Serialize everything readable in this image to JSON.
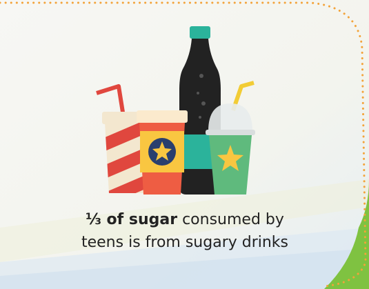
{
  "caption": {
    "highlight": "⅓ of sugar",
    "line1_rest": "consumed by",
    "line2": "teens is from sugary drinks"
  }
}
